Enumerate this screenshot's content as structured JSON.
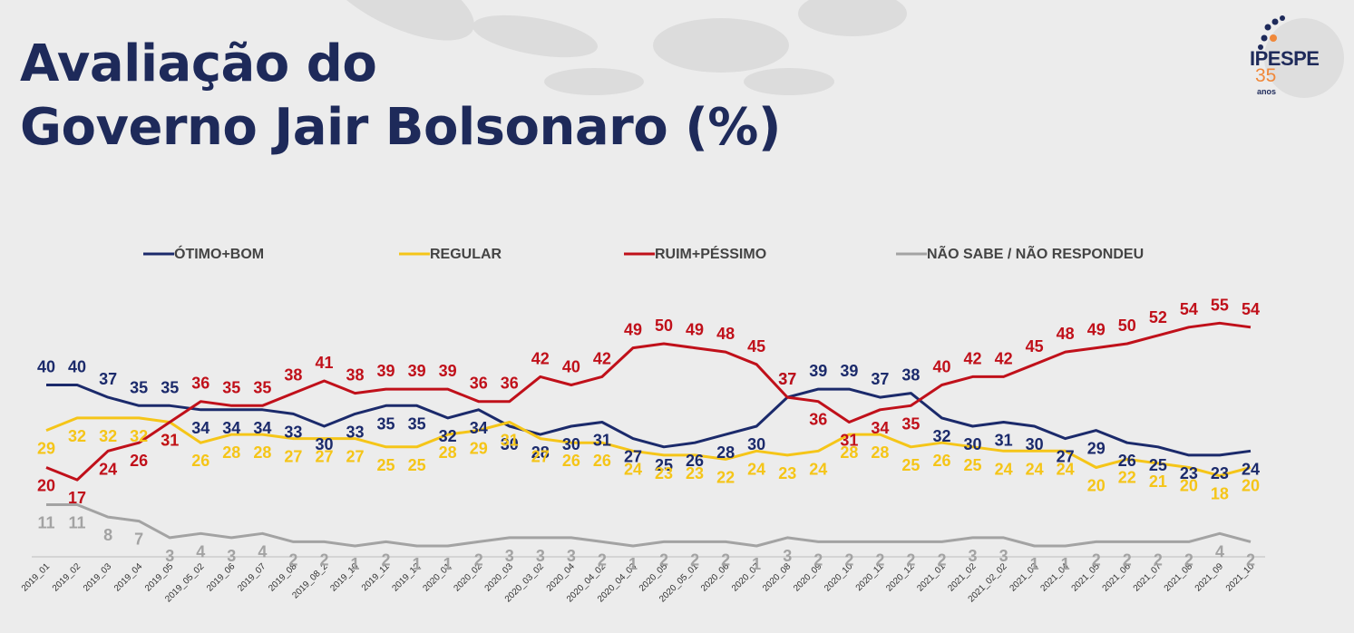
{
  "title": {
    "line1": "Avaliação do",
    "line2": "Governo Jair Bolsonaro (%)"
  },
  "logo": {
    "name": "IPESPE",
    "years": "35",
    "anos": "anos"
  },
  "chart_data": {
    "type": "line",
    "x": [
      "2019_01",
      "2019_02",
      "2019_03",
      "2019_04",
      "2019_05",
      "2019_05_02",
      "2019_06",
      "2019_07",
      "2019_08",
      "2019_08_2",
      "2019_10",
      "2019_11",
      "2019_12",
      "2020_01",
      "2020_02",
      "2020_03",
      "2020_03_02",
      "2020_04",
      "2020_04_02",
      "2020_04_03",
      "2020_05",
      "2020_05_01",
      "2020_06",
      "2020_07",
      "2020_08",
      "2020_09",
      "2020_10",
      "2020_11",
      "2020_12",
      "2021_01",
      "2021_02",
      "2021_02_02",
      "2021_03",
      "2021_04",
      "2021_05",
      "2021_06",
      "2021_07",
      "2021_08",
      "2021_09",
      "2021_10"
    ],
    "ylim": [
      0,
      60
    ],
    "grid": false,
    "legend_position": "top",
    "series": [
      {
        "name": "ÓTIMO+BOM",
        "color": "#1b2a6b",
        "values": [
          40,
          40,
          37,
          35,
          35,
          34,
          34,
          34,
          33,
          30,
          33,
          35,
          35,
          32,
          34,
          30,
          28,
          30,
          31,
          27,
          25,
          26,
          28,
          30,
          37,
          39,
          39,
          37,
          38,
          32,
          30,
          31,
          30,
          27,
          29,
          26,
          25,
          23,
          23,
          24
        ]
      },
      {
        "name": "REGULAR",
        "color": "#f5c518",
        "values": [
          29,
          32,
          32,
          32,
          31,
          26,
          28,
          28,
          27,
          27,
          27,
          25,
          25,
          28,
          29,
          31,
          27,
          26,
          26,
          24,
          23,
          23,
          22,
          24,
          23,
          24,
          28,
          28,
          25,
          26,
          25,
          24,
          24,
          24,
          20,
          22,
          21,
          20,
          18,
          20
        ]
      },
      {
        "name": "RUIM+PÉSSIMO",
        "color": "#c0101a",
        "values": [
          20,
          17,
          24,
          26,
          31,
          36,
          35,
          35,
          38,
          41,
          38,
          39,
          39,
          39,
          36,
          36,
          42,
          40,
          42,
          49,
          50,
          49,
          48,
          45,
          37,
          36,
          31,
          34,
          35,
          40,
          42,
          42,
          45,
          48,
          49,
          50,
          52,
          54,
          55,
          54
        ]
      },
      {
        "name": "NÃO SABE / NÃO RESPONDEU",
        "color": "#a3a3a3",
        "values": [
          11,
          11,
          8,
          7,
          3,
          4,
          3,
          4,
          2,
          2,
          1,
          2,
          1,
          1,
          2,
          3,
          3,
          3,
          2,
          1,
          2,
          2,
          2,
          1,
          3,
          2,
          2,
          2,
          2,
          2,
          3,
          3,
          1,
          1,
          2,
          2,
          2,
          2,
          4,
          2
        ]
      }
    ]
  }
}
